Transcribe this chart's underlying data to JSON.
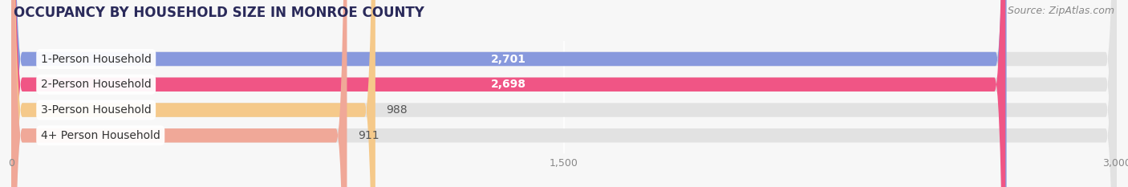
{
  "title": "OCCUPANCY BY HOUSEHOLD SIZE IN MONROE COUNTY",
  "source": "Source: ZipAtlas.com",
  "categories": [
    "1-Person Household",
    "2-Person Household",
    "3-Person Household",
    "4+ Person Household"
  ],
  "values": [
    2701,
    2698,
    988,
    911
  ],
  "bar_colors": [
    "#8899dd",
    "#f05585",
    "#f5c98a",
    "#f0a898"
  ],
  "label_colors": [
    "white",
    "white",
    "#555555",
    "#555555"
  ],
  "xlim": [
    0,
    3000
  ],
  "xticks": [
    0,
    1500,
    3000
  ],
  "background_color": "#f7f7f7",
  "bar_background_color": "#e2e2e2",
  "title_fontsize": 12,
  "source_fontsize": 9,
  "bar_label_fontsize": 10,
  "category_fontsize": 10
}
